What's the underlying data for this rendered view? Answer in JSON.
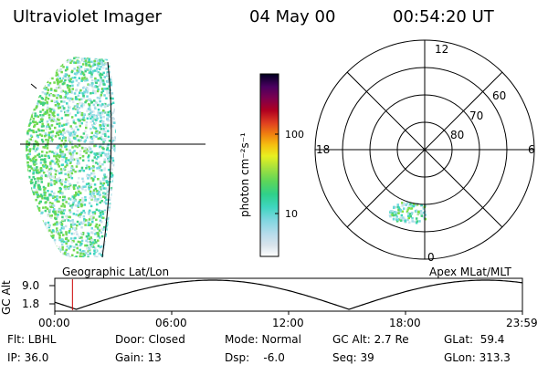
{
  "header": {
    "instrument": "Ultraviolet Imager",
    "date": "04 May 00",
    "time": "00:54:20 UT"
  },
  "colorbar": {
    "unit_label": "photon cm⁻²s⁻¹",
    "ticks": [
      "100",
      "10"
    ],
    "stops": [
      "#ffffff",
      "#d9e4ec",
      "#b9dcec",
      "#7fd6e0",
      "#3fd6c0",
      "#2fd08a",
      "#5cd65a",
      "#a0e040",
      "#e8f020",
      "#f5c010",
      "#f08010",
      "#e04020",
      "#b00020",
      "#7a0050",
      "#4a0060",
      "#1a0040",
      "#000020"
    ]
  },
  "geo_image": {
    "label": "Geographic Lat/Lon"
  },
  "polar_plot": {
    "label": "Apex MLat/MLT",
    "mlt_labels": [
      "12",
      "18",
      "6",
      "0"
    ],
    "mlat_labels": [
      "60",
      "70",
      "80"
    ]
  },
  "timeline": {
    "ylabel": "GC Alt",
    "y_ticks": [
      "9.0",
      "1.8"
    ],
    "x_ticks": [
      "00:00",
      "06:00",
      "12:00",
      "18:00",
      "23:59"
    ],
    "current_time_marker_hour": 0.906
  },
  "info": {
    "flt": "Flt: LBHL",
    "ip": "IP: 36.0",
    "door": "Door: Closed",
    "gain": "Gain: 13",
    "mode": "Mode: Normal",
    "dsp": "Dsp:    -6.0",
    "gcalt": "GC Alt: 2.7 Re",
    "seq": "Seq: 39",
    "glat": "GLat:  59.4",
    "glon": "GLon: 313.3"
  }
}
